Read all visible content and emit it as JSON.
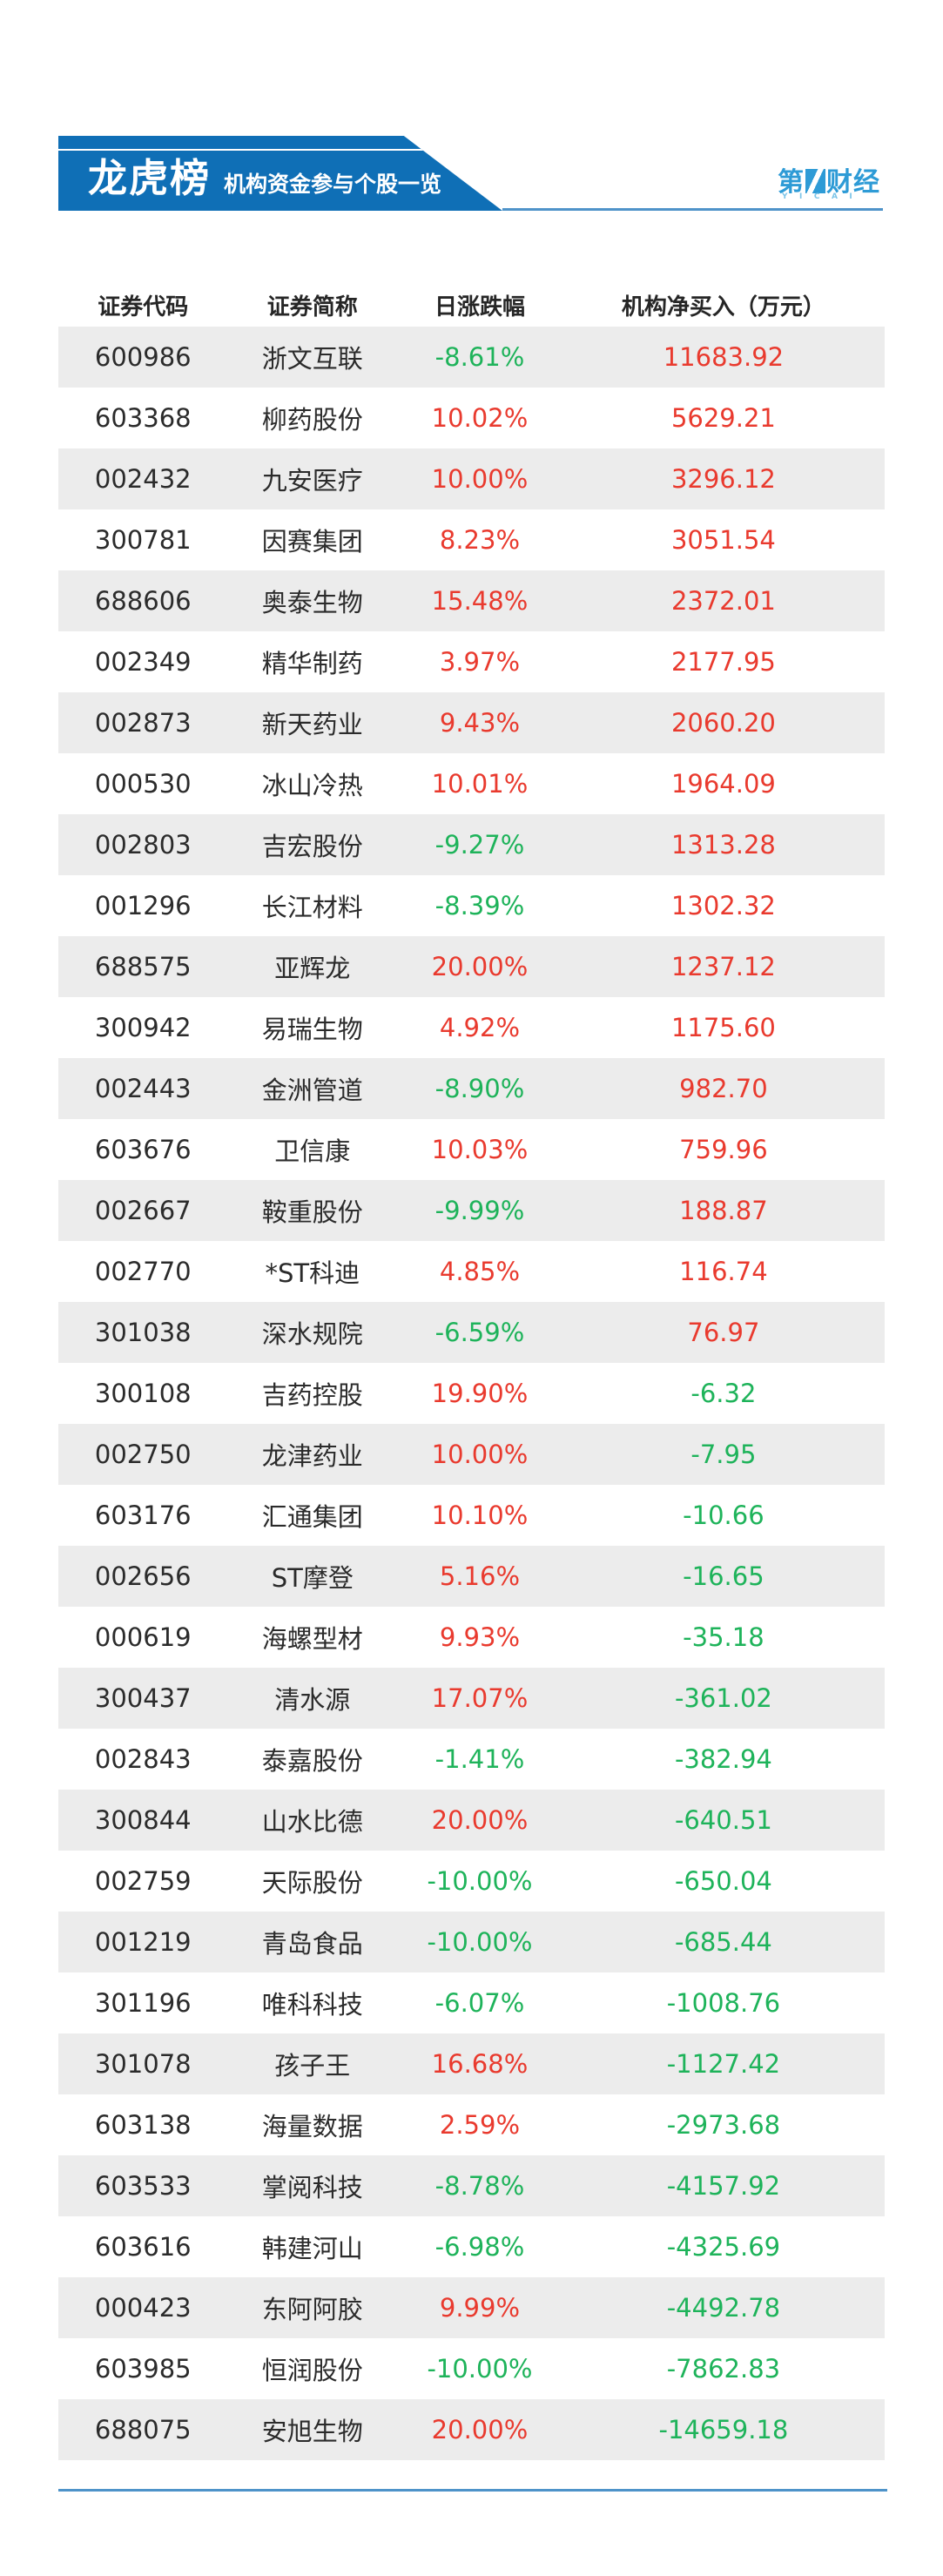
{
  "banner": {
    "title": "龙虎榜",
    "subtitle": "机构资金参与个股一览"
  },
  "logo": {
    "part1": "第",
    "part2": "财经",
    "sub": "YICAI"
  },
  "colors": {
    "banner_blue": "#0f6fb6",
    "rule_blue": "#4e93c9",
    "logo_blue": "#2e9bd6",
    "row_alt_gray": "#ececec",
    "positive_red": "#e93a2e",
    "negative_green": "#1eb35a",
    "text_dark": "#2b2b2b"
  },
  "chart_data": {
    "type": "table",
    "title": "龙虎榜 机构资金参与个股一览",
    "columns": [
      "证券代码",
      "证券简称",
      "日涨跌幅",
      "机构净买入（万元）"
    ],
    "rows": [
      [
        "600986",
        "浙文互联",
        "-8.61%",
        "11683.92"
      ],
      [
        "603368",
        "柳药股份",
        "10.02%",
        "5629.21"
      ],
      [
        "002432",
        "九安医疗",
        "10.00%",
        "3296.12"
      ],
      [
        "300781",
        "因赛集团",
        "8.23%",
        "3051.54"
      ],
      [
        "688606",
        "奥泰生物",
        "15.48%",
        "2372.01"
      ],
      [
        "002349",
        "精华制药",
        "3.97%",
        "2177.95"
      ],
      [
        "002873",
        "新天药业",
        "9.43%",
        "2060.20"
      ],
      [
        "000530",
        "冰山冷热",
        "10.01%",
        "1964.09"
      ],
      [
        "002803",
        "吉宏股份",
        "-9.27%",
        "1313.28"
      ],
      [
        "001296",
        "长江材料",
        "-8.39%",
        "1302.32"
      ],
      [
        "688575",
        "亚辉龙",
        "20.00%",
        "1237.12"
      ],
      [
        "300942",
        "易瑞生物",
        "4.92%",
        "1175.60"
      ],
      [
        "002443",
        "金洲管道",
        "-8.90%",
        "982.70"
      ],
      [
        "603676",
        "卫信康",
        "10.03%",
        "759.96"
      ],
      [
        "002667",
        "鞍重股份",
        "-9.99%",
        "188.87"
      ],
      [
        "002770",
        "*ST科迪",
        "4.85%",
        "116.74"
      ],
      [
        "301038",
        "深水规院",
        "-6.59%",
        "76.97"
      ],
      [
        "300108",
        "吉药控股",
        "19.90%",
        "-6.32"
      ],
      [
        "002750",
        "龙津药业",
        "10.00%",
        "-7.95"
      ],
      [
        "603176",
        "汇通集团",
        "10.10%",
        "-10.66"
      ],
      [
        "002656",
        "ST摩登",
        "5.16%",
        "-16.65"
      ],
      [
        "000619",
        "海螺型材",
        "9.93%",
        "-35.18"
      ],
      [
        "300437",
        "清水源",
        "17.07%",
        "-361.02"
      ],
      [
        "002843",
        "泰嘉股份",
        "-1.41%",
        "-382.94"
      ],
      [
        "300844",
        "山水比德",
        "20.00%",
        "-640.51"
      ],
      [
        "002759",
        "天际股份",
        "-10.00%",
        "-650.04"
      ],
      [
        "001219",
        "青岛食品",
        "-10.00%",
        "-685.44"
      ],
      [
        "301196",
        "唯科科技",
        "-6.07%",
        "-1008.76"
      ],
      [
        "301078",
        "孩子王",
        "16.68%",
        "-1127.42"
      ],
      [
        "603138",
        "海量数据",
        "2.59%",
        "-2973.68"
      ],
      [
        "603533",
        "掌阅科技",
        "-8.78%",
        "-4157.92"
      ],
      [
        "603616",
        "韩建河山",
        "-6.98%",
        "-4325.69"
      ],
      [
        "000423",
        "东阿阿胶",
        "9.99%",
        "-4492.78"
      ],
      [
        "603985",
        "恒润股份",
        "-10.00%",
        "-7862.83"
      ],
      [
        "688075",
        "安旭生物",
        "20.00%",
        "-14659.18"
      ]
    ]
  }
}
